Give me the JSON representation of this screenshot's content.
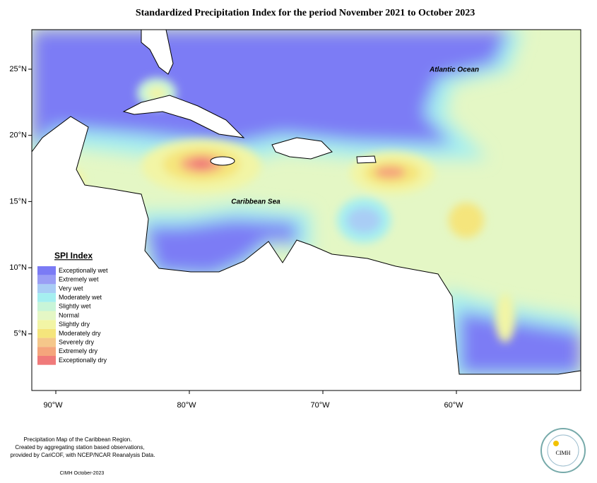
{
  "header": {
    "title": "Standardized Precipitation Index for the period November 2021 to October 2023"
  },
  "map": {
    "lat_ticks": [
      "25°N",
      "20°N",
      "15°N",
      "10°N",
      "5°N"
    ],
    "lon_ticks": [
      "90°W",
      "80°W",
      "70°W",
      "60°W"
    ],
    "labels": [
      "Atlantic Ocean",
      "Caribbean Sea"
    ]
  },
  "legend": {
    "title": "SPI Index",
    "entries": [
      {
        "label": "Exceptionally wet",
        "color": "#7b7bf5"
      },
      {
        "label": "Extremely wet",
        "color": "#9a9ef5"
      },
      {
        "label": "Very wet",
        "color": "#a9cdf5"
      },
      {
        "label": "Moderately wet",
        "color": "#a5eff0"
      },
      {
        "label": "Slightly wet",
        "color": "#c8f5d8"
      },
      {
        "label": "Normal",
        "color": "#e4f7c5"
      },
      {
        "label": "Slightly dry",
        "color": "#f2f5a5"
      },
      {
        "label": "Moderately dry",
        "color": "#f5e57c"
      },
      {
        "label": "Severely dry",
        "color": "#f5c78a"
      },
      {
        "label": "Extremely dry",
        "color": "#f5a57c"
      },
      {
        "label": "Exceptionally dry",
        "color": "#f07a7a"
      }
    ]
  },
  "footer": {
    "notes": [
      "Precipitation Map of the Caribbean Region.",
      "Created by aggregating station based observations,",
      "provided by CariCOF, with NCEP/NCAR Reanalysis Data."
    ],
    "credit": "CIMH October-2023",
    "logo": "CIMH"
  }
}
